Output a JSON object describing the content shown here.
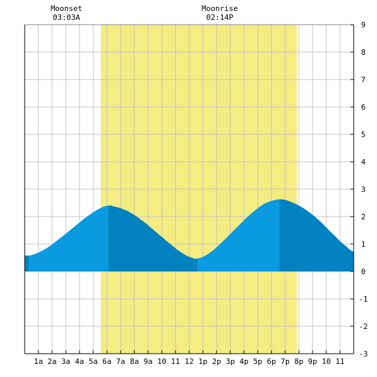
{
  "chart_data": {
    "type": "area",
    "title": "",
    "xlabel": "",
    "ylabel": "",
    "x_range_hours": [
      0,
      24
    ],
    "ylim": [
      -3,
      9
    ],
    "y_ticks": [
      -3,
      -2,
      -1,
      0,
      1,
      2,
      3,
      4,
      5,
      6,
      7,
      8,
      9
    ],
    "x_tick_labels": [
      "1a",
      "2a",
      "3a",
      "4a",
      "5a",
      "6a",
      "7a",
      "8a",
      "9a",
      "10",
      "11",
      "12",
      "1p",
      "2p",
      "3p",
      "4p",
      "5p",
      "6p",
      "7p",
      "8p",
      "9p",
      "10",
      "11"
    ],
    "grid": true,
    "daylight": {
      "start_hour": 5.55,
      "end_hour": 19.85,
      "color": "#f5ec82"
    },
    "tide_points": [
      {
        "hour": 0.0,
        "height": 0.58
      },
      {
        "hour": 0.5,
        "height": 0.6
      },
      {
        "hour": 1.5,
        "height": 0.82
      },
      {
        "hour": 2.5,
        "height": 1.18
      },
      {
        "hour": 3.5,
        "height": 1.58
      },
      {
        "hour": 4.5,
        "height": 1.98
      },
      {
        "hour": 5.5,
        "height": 2.3
      },
      {
        "hour": 6.1,
        "height": 2.4
      },
      {
        "hour": 6.5,
        "height": 2.37
      },
      {
        "hour": 7.5,
        "height": 2.2
      },
      {
        "hour": 8.5,
        "height": 1.88
      },
      {
        "hour": 9.5,
        "height": 1.47
      },
      {
        "hour": 10.5,
        "height": 1.05
      },
      {
        "hour": 11.5,
        "height": 0.67
      },
      {
        "hour": 12.2,
        "height": 0.5
      },
      {
        "hour": 12.6,
        "height": 0.47
      },
      {
        "hour": 13.5,
        "height": 0.68
      },
      {
        "hour": 14.5,
        "height": 1.12
      },
      {
        "hour": 15.5,
        "height": 1.62
      },
      {
        "hour": 16.5,
        "height": 2.1
      },
      {
        "hour": 17.5,
        "height": 2.47
      },
      {
        "hour": 18.6,
        "height": 2.63
      },
      {
        "hour": 19.5,
        "height": 2.52
      },
      {
        "hour": 20.5,
        "height": 2.25
      },
      {
        "hour": 21.5,
        "height": 1.85
      },
      {
        "hour": 22.5,
        "height": 1.35
      },
      {
        "hour": 23.5,
        "height": 0.9
      },
      {
        "hour": 24.0,
        "height": 0.72
      }
    ],
    "dark_bands": [
      {
        "start_hour": 0.0,
        "end_hour": 0.3
      },
      {
        "start_hour": 6.1,
        "end_hour": 12.6
      },
      {
        "start_hour": 18.6,
        "end_hour": 24.0
      }
    ],
    "annotations": [
      {
        "label": "Moonset",
        "time": "03:03A",
        "hour": 3.05
      },
      {
        "label": "Moonrise",
        "time": "02:14P",
        "hour": 14.23
      }
    ],
    "colors": {
      "water_light": "#0a9ae0",
      "water_dark": "#0282c0",
      "grid": "#c4c4c4",
      "axis": "#000000"
    }
  }
}
